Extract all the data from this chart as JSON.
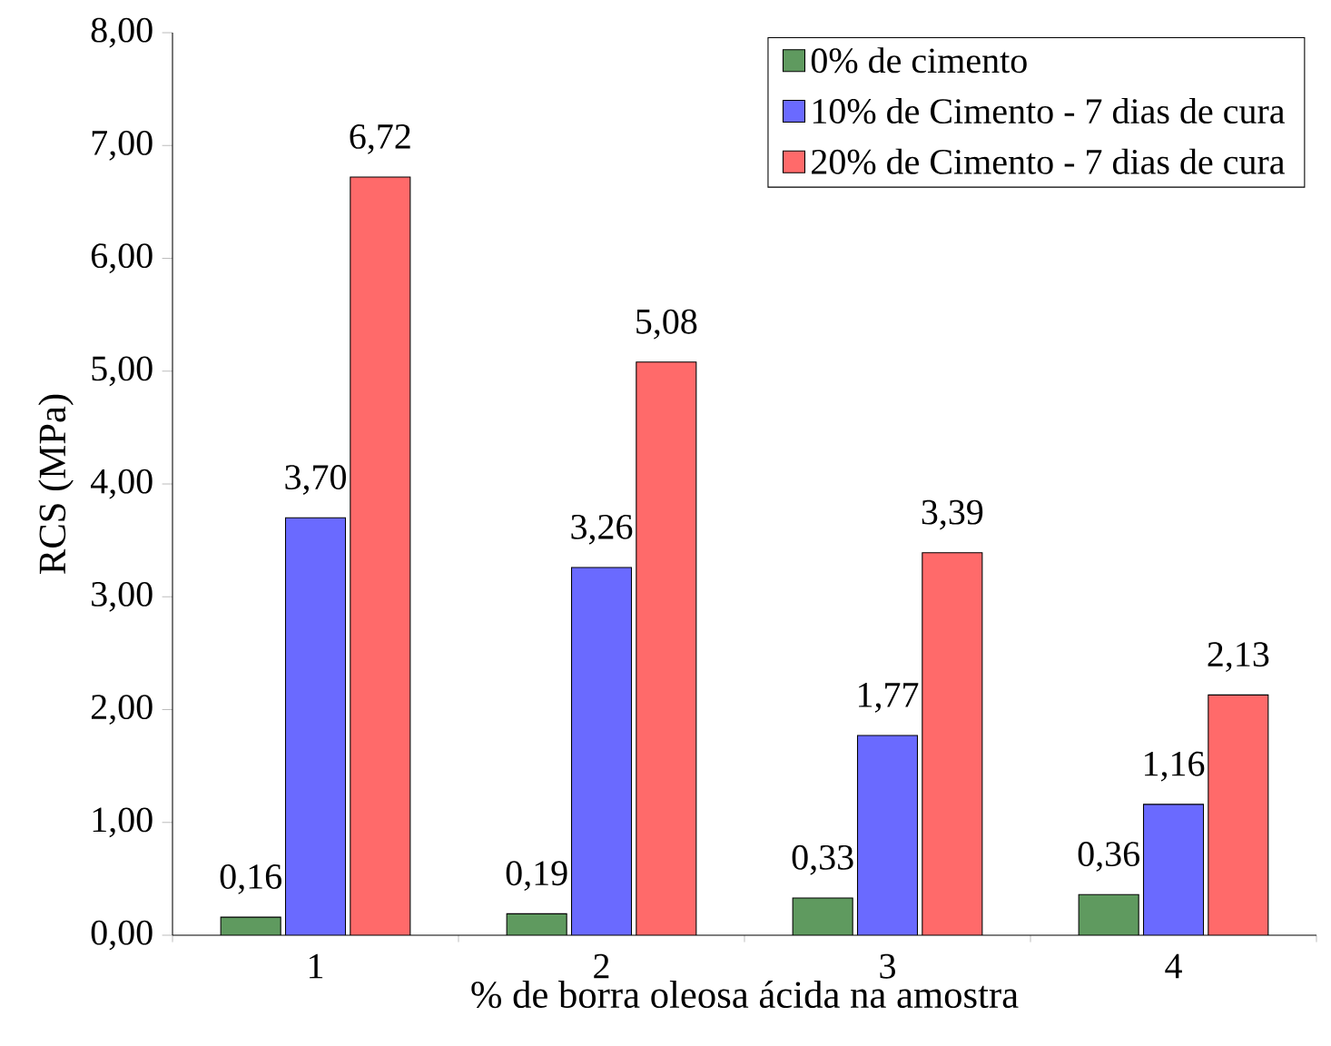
{
  "chart_data": {
    "type": "bar",
    "xlabel": "% de borra oleosa ácida na amostra",
    "ylabel": "RCS (MPa)",
    "categories": [
      "1",
      "2",
      "3",
      "4"
    ],
    "series": [
      {
        "name": "0% de cimento",
        "color": "#5f9a5f",
        "values": [
          0.16,
          0.19,
          0.33,
          0.36
        ],
        "value_labels": [
          "0,16",
          "0,19",
          "0,33",
          "0,36"
        ]
      },
      {
        "name": "10% de Cimento - 7 dias de cura",
        "color": "#6a6aff",
        "values": [
          3.7,
          3.26,
          1.77,
          1.16
        ],
        "value_labels": [
          "3,70",
          "3,26",
          "1,77",
          "1,16"
        ]
      },
      {
        "name": "20% de Cimento - 7 dias de cura",
        "color": "#ff6a6a",
        "values": [
          6.72,
          5.08,
          3.39,
          2.13
        ],
        "value_labels": [
          "6,72",
          "5,08",
          "3,39",
          "2,13"
        ]
      }
    ],
    "ylim": [
      0,
      8
    ],
    "yticks": [
      {
        "value": 0,
        "label": "0,00"
      },
      {
        "value": 1,
        "label": "1,00"
      },
      {
        "value": 2,
        "label": "2,00"
      },
      {
        "value": 3,
        "label": "3,00"
      },
      {
        "value": 4,
        "label": "4,00"
      },
      {
        "value": 5,
        "label": "5,00"
      },
      {
        "value": 6,
        "label": "6,00"
      },
      {
        "value": 7,
        "label": "7,00"
      },
      {
        "value": 8,
        "label": "8,00"
      }
    ],
    "legend": "top right",
    "grid": false
  }
}
